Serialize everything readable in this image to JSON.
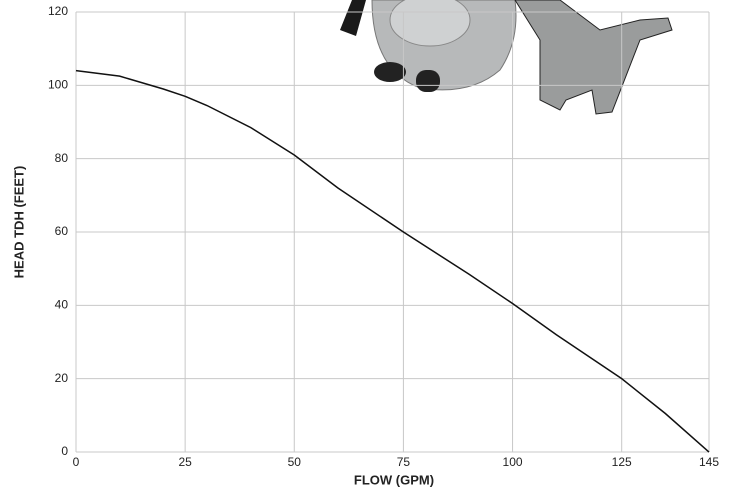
{
  "chart_data": {
    "type": "line",
    "x_label": "FLOW (GPM)",
    "y_label": "HEAD TDH (FEET)",
    "x": [
      0,
      10,
      20,
      25,
      30,
      40,
      50,
      60,
      75,
      90,
      100,
      110,
      125,
      135,
      145
    ],
    "values": [
      104,
      102.5,
      99,
      97,
      94.5,
      88.5,
      81,
      72,
      60,
      48.5,
      40.5,
      32,
      20,
      10.5,
      0
    ],
    "color": "#111111",
    "xlim": [
      0,
      145
    ],
    "xticks": [
      0,
      25,
      50,
      75,
      100,
      125,
      145
    ],
    "ylim": [
      0,
      120
    ],
    "yticks": [
      0,
      20,
      40,
      60,
      80,
      100,
      120
    ],
    "grid": true
  }
}
